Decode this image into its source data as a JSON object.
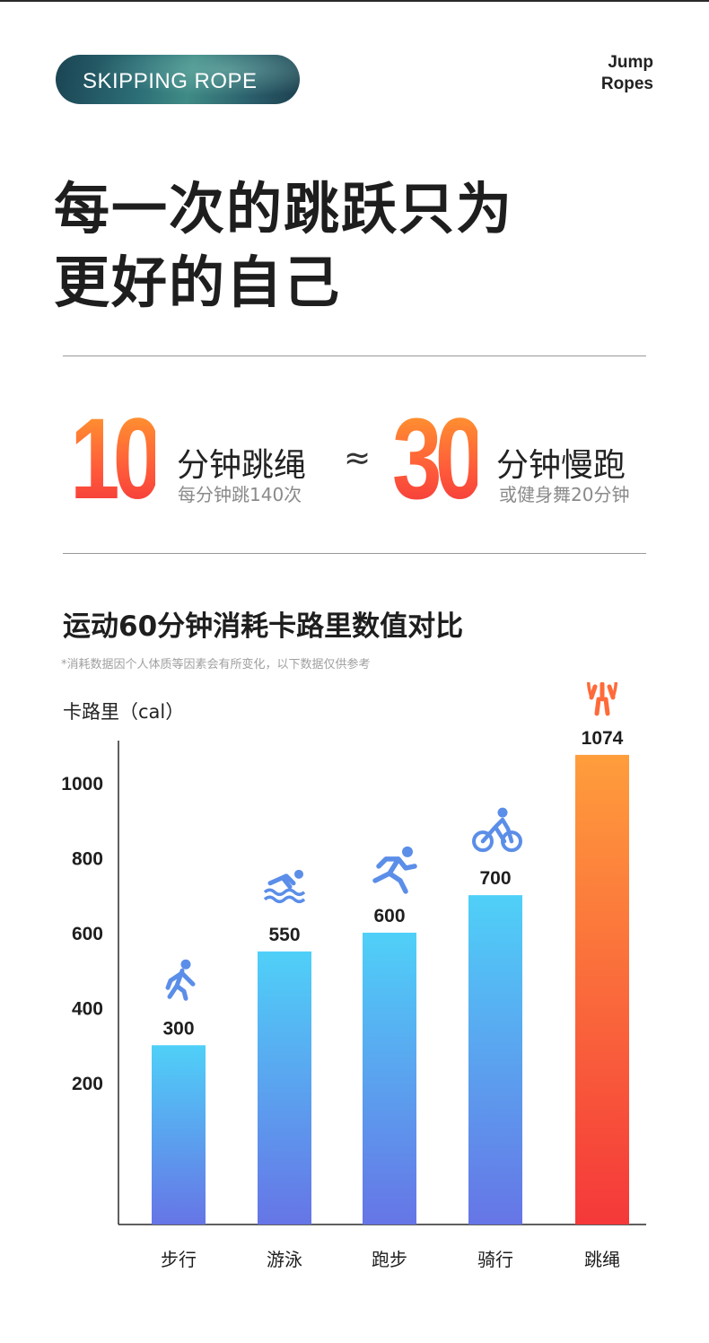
{
  "header": {
    "pill_label": "SKIPPING ROPE",
    "brand_line1": "Jump",
    "brand_line2": "Ropes"
  },
  "headline": {
    "line1": "每一次的跳跃只为",
    "line2": "更好的自己"
  },
  "comparison": {
    "left_number": "10",
    "left_main": "分钟跳绳",
    "left_sub": "每分钟跳140次",
    "approx_symbol": "≈",
    "right_number": "30",
    "right_main": "分钟慢跑",
    "right_sub": "或健身舞20分钟"
  },
  "colors": {
    "accent_orange": "#ff8a2a",
    "accent_red": "#f2373b",
    "bar_blue_top": "#4fd0f8",
    "bar_blue_bottom": "#6675e6",
    "bar_highlight_top": "#ff9d3c",
    "bar_highlight_bottom": "#f5383a"
  },
  "chart_data": {
    "type": "bar",
    "title": "运动60分钟消耗卡路里数值对比",
    "note": "*消耗数据因个人体质等因素会有所变化，以下数据仅供参考",
    "ylabel": "卡路里（cal）",
    "xlabel": "",
    "categories": [
      "步行",
      "游泳",
      "跑步",
      "骑行",
      "跳绳"
    ],
    "values": [
      300,
      550,
      600,
      700,
      1074
    ],
    "value_labels": [
      "300",
      "550",
      "600",
      "700",
      "1074"
    ],
    "icons": [
      "walking-icon",
      "swimming-icon",
      "running-icon",
      "cycling-icon",
      "jump-rope-icon"
    ],
    "highlight_index": 4,
    "yticks": [
      200,
      400,
      600,
      800,
      1000
    ],
    "ylim": [
      -178,
      1112
    ],
    "grid": false
  }
}
